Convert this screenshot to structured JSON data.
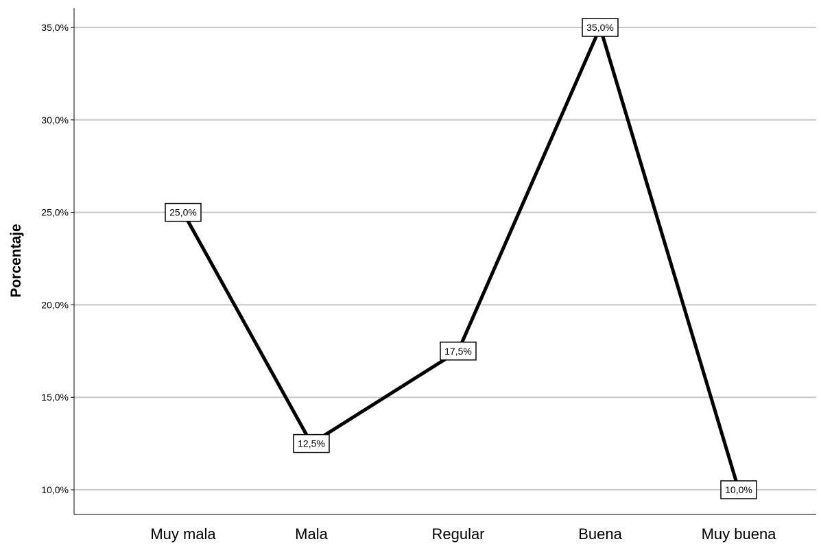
{
  "chart_data": {
    "type": "line",
    "categories": [
      "Muy mala",
      "Mala",
      "Regular",
      "Buena",
      "Muy buena"
    ],
    "values": [
      25.0,
      12.5,
      17.5,
      35.0,
      10.0
    ],
    "data_labels": [
      "25,0%",
      "12,5%",
      "17,5%",
      "35,0%",
      "10,0%"
    ],
    "ylabel": "Porcentaje",
    "xlabel": "",
    "ylim": [
      10.0,
      35.0
    ],
    "yticks": [
      10.0,
      15.0,
      20.0,
      25.0,
      30.0,
      35.0
    ],
    "ytick_labels": [
      "10,0%",
      "15,0%",
      "20,0%",
      "25,0%",
      "30,0%",
      "35,0%"
    ],
    "grid": true,
    "line_color": "#000000",
    "grid_color": "#c8c8c8"
  }
}
